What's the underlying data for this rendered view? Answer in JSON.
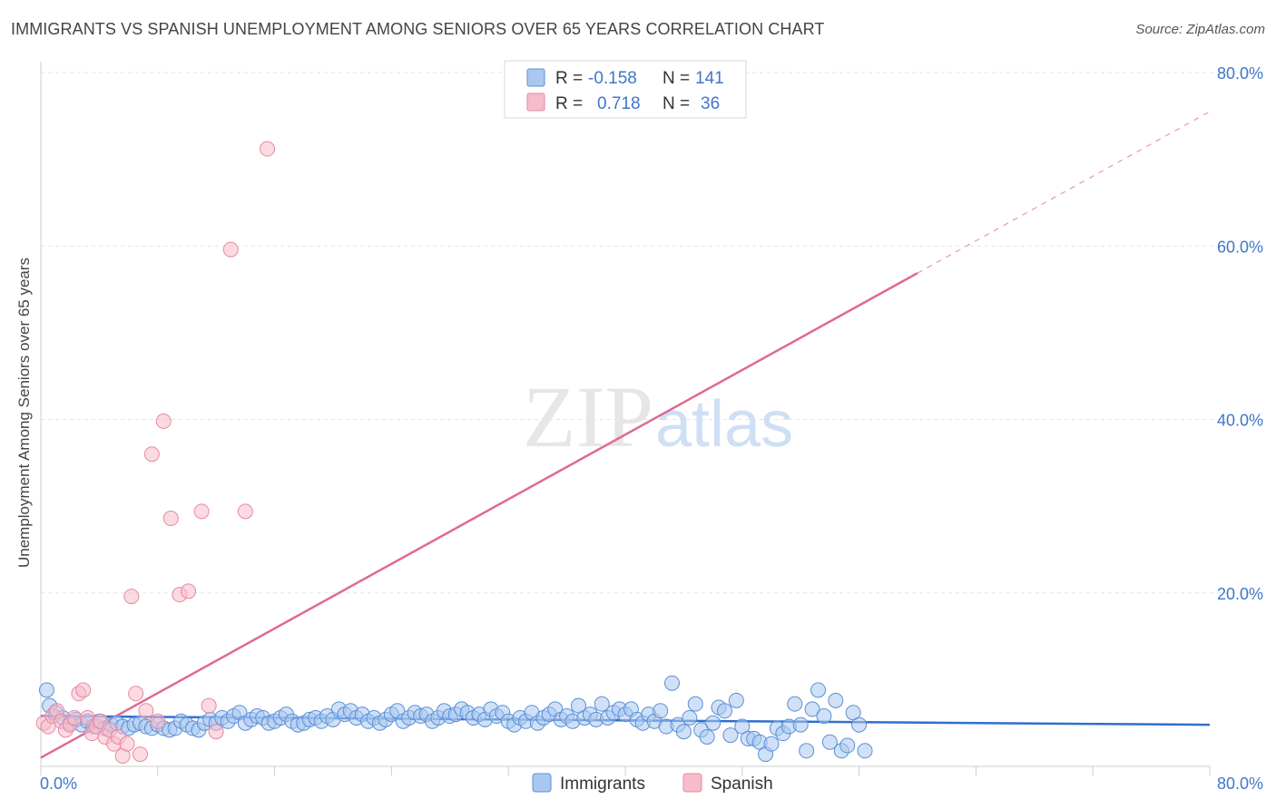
{
  "title": "IMMIGRANTS VS SPANISH UNEMPLOYMENT AMONG SENIORS OVER 65 YEARS CORRELATION CHART",
  "source": "Source: ZipAtlas.com",
  "watermark": {
    "zip": "ZIP",
    "atlas": "atlas"
  },
  "colors": {
    "immigrants_fill": "#a9c8f0",
    "immigrants_stroke": "#5b8fd6",
    "immigrants_line": "#2f6fce",
    "spanish_fill": "#f7bccb",
    "spanish_stroke": "#e58aa3",
    "spanish_line": "#e06a92",
    "axis_text": "#3f77c9"
  },
  "legend_top": [
    {
      "r_label": "R =",
      "r_value": "-0.158",
      "n_label": "N =",
      "n_value": "141"
    },
    {
      "r_label": "R =",
      "r_value": "0.718",
      "n_label": "N =",
      "n_value": "36"
    }
  ],
  "chart_data": {
    "type": "scatter",
    "title": "IMMIGRANTS VS SPANISH UNEMPLOYMENT AMONG SENIORS OVER 65 YEARS CORRELATION CHART",
    "xlabel": "",
    "ylabel": "Unemployment Among Seniors over 65 years",
    "xlim": [
      0,
      80
    ],
    "ylim": [
      0,
      80
    ],
    "x_tick_labels": [
      "0.0%",
      "80.0%"
    ],
    "y_ticks": [
      20,
      40,
      60,
      80
    ],
    "y_tick_labels": [
      "20.0%",
      "40.0%",
      "60.0%",
      "80.0%"
    ],
    "legend": [
      "Immigrants",
      "Spanish"
    ],
    "series": [
      {
        "name": "Immigrants",
        "trend": {
          "x": [
            0,
            80
          ],
          "y": [
            5.8,
            4.8
          ],
          "dashed_from": null
        },
        "points": [
          [
            0.4,
            8.8
          ],
          [
            0.6,
            7.0
          ],
          [
            1.0,
            6.2
          ],
          [
            1.5,
            5.6
          ],
          [
            2.0,
            5.0
          ],
          [
            2.4,
            5.4
          ],
          [
            2.8,
            4.8
          ],
          [
            3.2,
            5.2
          ],
          [
            3.6,
            4.6
          ],
          [
            4.0,
            5.2
          ],
          [
            4.4,
            4.4
          ],
          [
            4.8,
            4.8
          ],
          [
            5.2,
            5.0
          ],
          [
            5.6,
            4.6
          ],
          [
            6.0,
            4.4
          ],
          [
            6.4,
            4.8
          ],
          [
            6.8,
            5.0
          ],
          [
            7.2,
            4.6
          ],
          [
            7.6,
            4.4
          ],
          [
            8.0,
            4.8
          ],
          [
            8.4,
            4.4
          ],
          [
            8.8,
            4.2
          ],
          [
            9.2,
            4.4
          ],
          [
            9.6,
            5.2
          ],
          [
            10.0,
            4.8
          ],
          [
            10.4,
            4.4
          ],
          [
            10.8,
            4.2
          ],
          [
            11.2,
            5.0
          ],
          [
            11.6,
            5.4
          ],
          [
            12.0,
            5.0
          ],
          [
            12.4,
            5.6
          ],
          [
            12.8,
            5.2
          ],
          [
            13.2,
            5.8
          ],
          [
            13.6,
            6.2
          ],
          [
            14.0,
            5.0
          ],
          [
            14.4,
            5.4
          ],
          [
            14.8,
            5.8
          ],
          [
            15.2,
            5.6
          ],
          [
            15.6,
            5.0
          ],
          [
            16.0,
            5.2
          ],
          [
            16.4,
            5.6
          ],
          [
            16.8,
            6.0
          ],
          [
            17.2,
            5.2
          ],
          [
            17.6,
            4.8
          ],
          [
            18.0,
            5.0
          ],
          [
            18.4,
            5.4
          ],
          [
            18.8,
            5.6
          ],
          [
            19.2,
            5.2
          ],
          [
            19.6,
            5.8
          ],
          [
            20.0,
            5.4
          ],
          [
            20.4,
            6.6
          ],
          [
            20.8,
            6.0
          ],
          [
            21.2,
            6.4
          ],
          [
            21.6,
            5.6
          ],
          [
            22.0,
            6.0
          ],
          [
            22.4,
            5.2
          ],
          [
            22.8,
            5.6
          ],
          [
            23.2,
            5.0
          ],
          [
            23.6,
            5.4
          ],
          [
            24.0,
            6.0
          ],
          [
            24.4,
            6.4
          ],
          [
            24.8,
            5.2
          ],
          [
            25.2,
            5.6
          ],
          [
            25.6,
            6.2
          ],
          [
            26.0,
            5.8
          ],
          [
            26.4,
            6.0
          ],
          [
            26.8,
            5.2
          ],
          [
            27.2,
            5.6
          ],
          [
            27.6,
            6.4
          ],
          [
            28.0,
            5.8
          ],
          [
            28.4,
            6.0
          ],
          [
            28.8,
            6.6
          ],
          [
            29.2,
            6.2
          ],
          [
            29.6,
            5.6
          ],
          [
            30.0,
            6.0
          ],
          [
            30.4,
            5.4
          ],
          [
            30.8,
            6.6
          ],
          [
            31.2,
            5.8
          ],
          [
            31.6,
            6.2
          ],
          [
            32.0,
            5.2
          ],
          [
            32.4,
            4.8
          ],
          [
            32.8,
            5.6
          ],
          [
            33.2,
            5.2
          ],
          [
            33.6,
            6.2
          ],
          [
            34.0,
            5.0
          ],
          [
            34.4,
            5.6
          ],
          [
            34.8,
            6.0
          ],
          [
            35.2,
            6.6
          ],
          [
            35.6,
            5.4
          ],
          [
            36.0,
            5.8
          ],
          [
            36.4,
            5.2
          ],
          [
            36.8,
            7.0
          ],
          [
            37.2,
            5.6
          ],
          [
            37.6,
            6.0
          ],
          [
            38.0,
            5.4
          ],
          [
            38.4,
            7.2
          ],
          [
            38.8,
            5.6
          ],
          [
            39.2,
            6.2
          ],
          [
            39.6,
            6.6
          ],
          [
            40.0,
            6.0
          ],
          [
            40.4,
            6.6
          ],
          [
            40.8,
            5.4
          ],
          [
            41.2,
            5.0
          ],
          [
            41.6,
            6.0
          ],
          [
            42.0,
            5.2
          ],
          [
            42.4,
            6.4
          ],
          [
            42.8,
            4.6
          ],
          [
            43.2,
            9.6
          ],
          [
            43.6,
            4.8
          ],
          [
            44.0,
            4.0
          ],
          [
            44.4,
            5.6
          ],
          [
            44.8,
            7.2
          ],
          [
            45.2,
            4.2
          ],
          [
            45.6,
            3.4
          ],
          [
            46.0,
            5.0
          ],
          [
            46.4,
            6.8
          ],
          [
            46.8,
            6.4
          ],
          [
            47.2,
            3.6
          ],
          [
            47.6,
            7.6
          ],
          [
            48.0,
            4.6
          ],
          [
            48.4,
            3.2
          ],
          [
            48.8,
            3.2
          ],
          [
            49.2,
            2.8
          ],
          [
            49.6,
            1.4
          ],
          [
            50.0,
            2.6
          ],
          [
            50.4,
            4.4
          ],
          [
            50.8,
            3.8
          ],
          [
            51.2,
            4.6
          ],
          [
            51.6,
            7.2
          ],
          [
            52.0,
            4.8
          ],
          [
            52.4,
            1.8
          ],
          [
            52.8,
            6.6
          ],
          [
            53.2,
            8.8
          ],
          [
            53.6,
            5.8
          ],
          [
            54.0,
            2.8
          ],
          [
            54.4,
            7.6
          ],
          [
            54.8,
            1.8
          ],
          [
            55.2,
            2.4
          ],
          [
            55.6,
            6.2
          ],
          [
            56.0,
            4.8
          ],
          [
            56.4,
            1.8
          ]
        ]
      },
      {
        "name": "Spanish",
        "trend": {
          "x": [
            0,
            80
          ],
          "y": [
            1.0,
            75.5
          ],
          "dashed_from": 60
        },
        "points": [
          [
            0.2,
            5.0
          ],
          [
            0.5,
            4.6
          ],
          [
            0.8,
            5.8
          ],
          [
            1.1,
            6.4
          ],
          [
            1.4,
            5.2
          ],
          [
            1.7,
            4.2
          ],
          [
            2.0,
            4.8
          ],
          [
            2.3,
            5.6
          ],
          [
            2.6,
            8.4
          ],
          [
            2.9,
            8.8
          ],
          [
            3.2,
            5.6
          ],
          [
            3.5,
            3.8
          ],
          [
            3.8,
            4.6
          ],
          [
            4.1,
            5.2
          ],
          [
            4.4,
            3.4
          ],
          [
            4.7,
            4.2
          ],
          [
            5.0,
            2.6
          ],
          [
            5.3,
            3.4
          ],
          [
            5.6,
            1.2
          ],
          [
            5.9,
            2.6
          ],
          [
            6.2,
            19.6
          ],
          [
            6.5,
            8.4
          ],
          [
            6.8,
            1.4
          ],
          [
            7.2,
            6.4
          ],
          [
            7.6,
            36.0
          ],
          [
            8.0,
            5.2
          ],
          [
            8.4,
            39.8
          ],
          [
            8.9,
            28.6
          ],
          [
            9.5,
            19.8
          ],
          [
            10.1,
            20.2
          ],
          [
            11.0,
            29.4
          ],
          [
            11.5,
            7.0
          ],
          [
            12.0,
            4.0
          ],
          [
            13.0,
            59.6
          ],
          [
            14.0,
            29.4
          ],
          [
            15.5,
            71.2
          ]
        ]
      }
    ]
  }
}
